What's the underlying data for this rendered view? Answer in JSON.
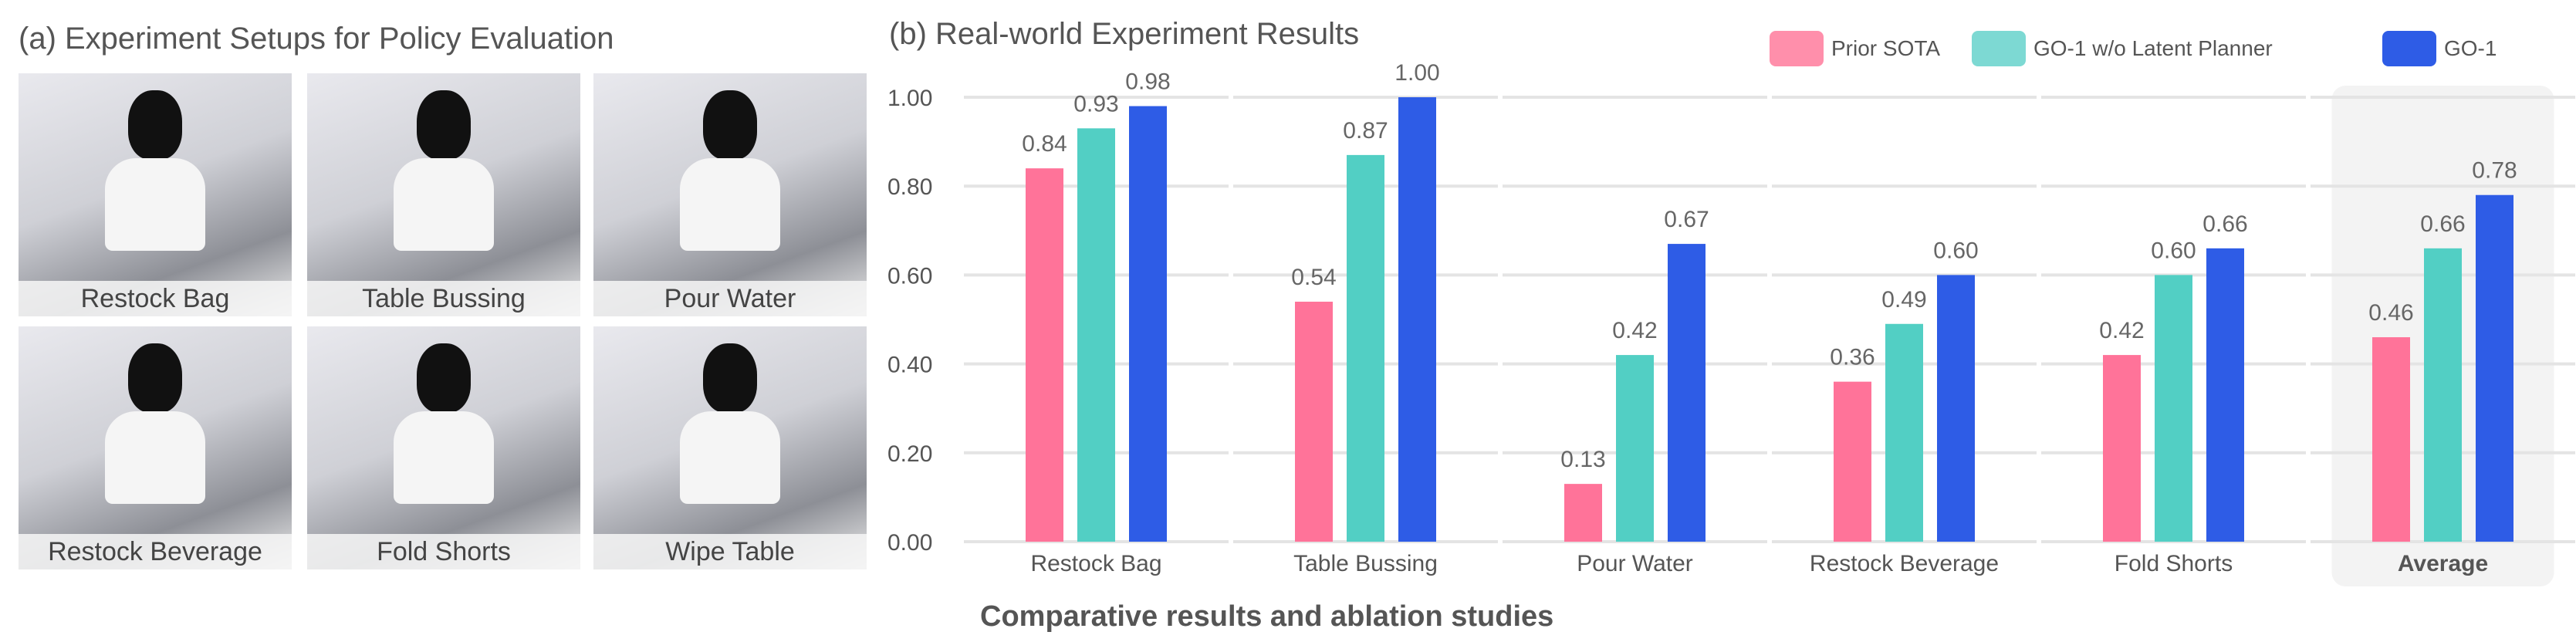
{
  "left_panel": {
    "title": "(a) Experiment Setups for Policy Evaluation",
    "photos": [
      {
        "label": "Restock Bag"
      },
      {
        "label": "Table Bussing"
      },
      {
        "label": "Pour Water"
      },
      {
        "label": "Restock Beverage"
      },
      {
        "label": "Fold Shorts"
      },
      {
        "label": "Wipe Table"
      }
    ]
  },
  "chart_data": {
    "type": "bar",
    "title": "(b) Real-world Experiment Results",
    "categories": [
      "Restock Bag",
      "Table Bussing",
      "Pour Water",
      "Restock Beverage",
      "Fold Shorts",
      "Average"
    ],
    "highlighted_category": "Average",
    "series": [
      {
        "name": "Prior SOTA",
        "color": "#ff7399",
        "values": [
          0.84,
          0.54,
          0.13,
          0.36,
          0.42,
          0.46
        ]
      },
      {
        "name": "GO-1 w/o Latent Planner",
        "color": "#52cfc4",
        "values": [
          0.93,
          0.87,
          0.42,
          0.49,
          0.6,
          0.66
        ]
      },
      {
        "name": "GO-1",
        "color": "#2e5ce6",
        "values": [
          0.98,
          1.0,
          0.67,
          0.6,
          0.66,
          0.78
        ]
      }
    ],
    "yticks": [
      "0.00",
      "0.20",
      "0.40",
      "0.60",
      "0.80",
      "1.00"
    ],
    "ylim": [
      0,
      1
    ],
    "grid": true,
    "legend_placement": "top-right",
    "xlabel": "",
    "ylabel": ""
  },
  "caption": "Comparative results and ablation studies"
}
